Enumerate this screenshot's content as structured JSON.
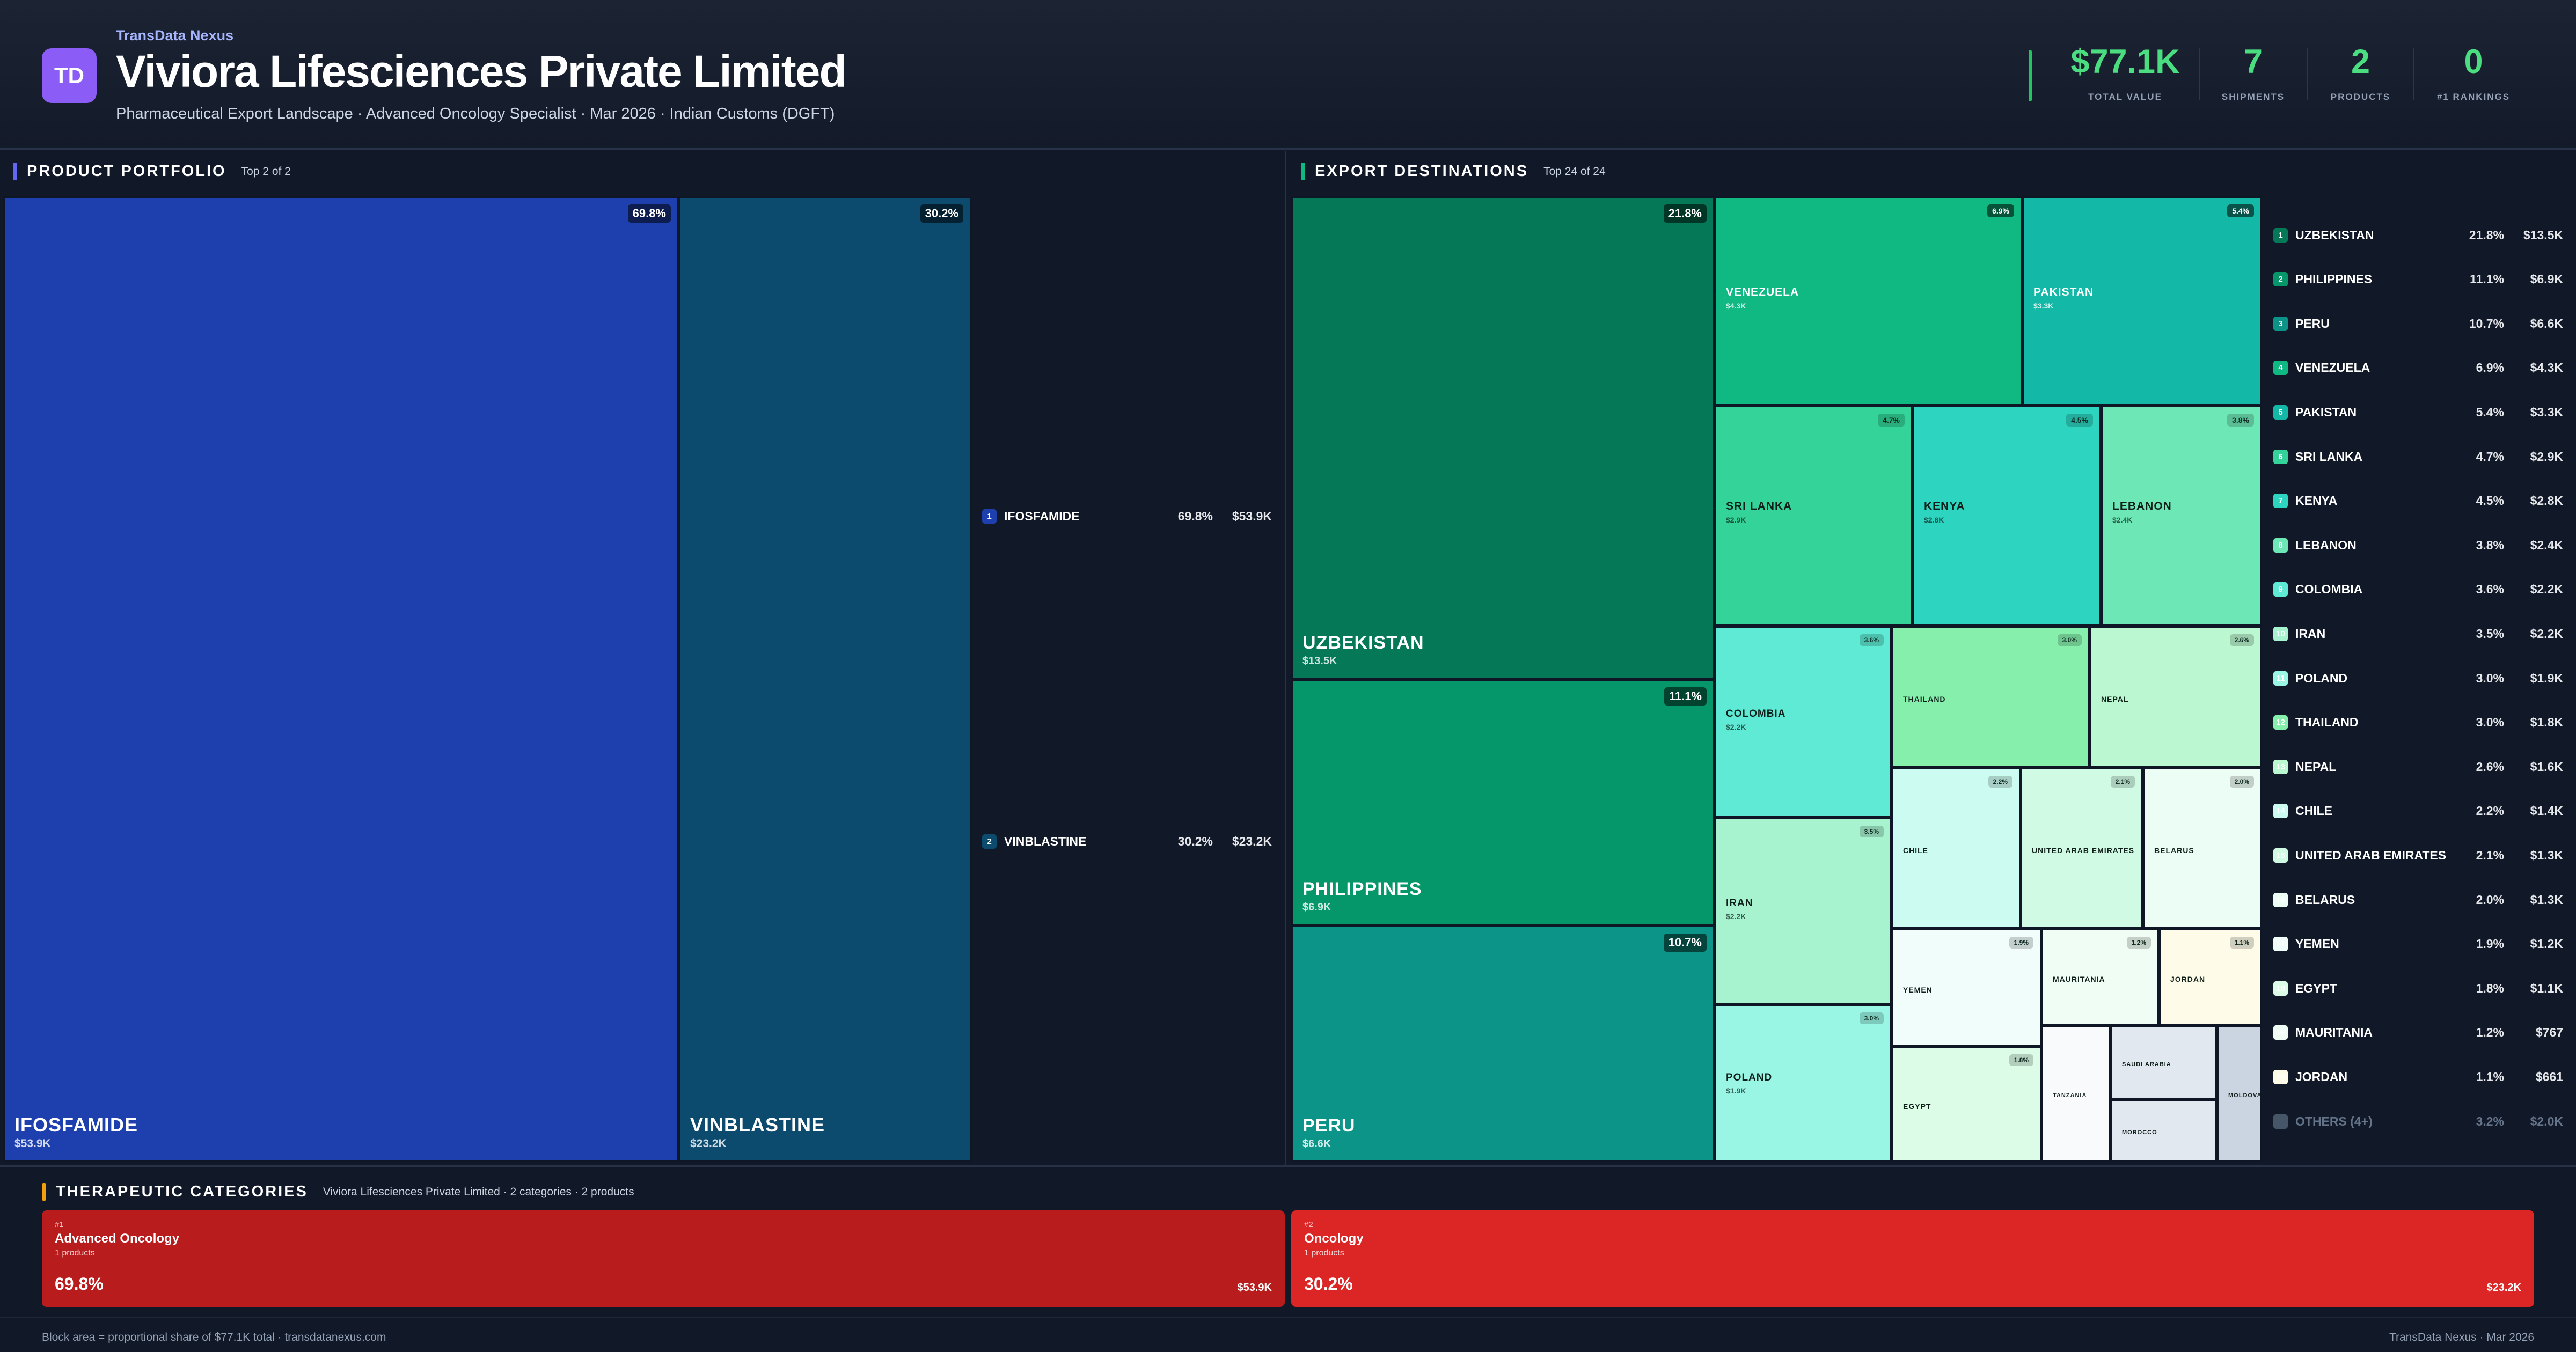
{
  "header": {
    "logo": "TD",
    "brand": "TransData Nexus",
    "company": "Viviora Lifesciences Private Limited",
    "subtitle": "Pharmaceutical Export Landscape · Advanced Oncology Specialist · Mar 2026 · Indian Customs (DGFT)",
    "stats": [
      {
        "value": "$77.1K",
        "label": "TOTAL VALUE"
      },
      {
        "value": "7",
        "label": "SHIPMENTS"
      },
      {
        "value": "2",
        "label": "PRODUCTS"
      },
      {
        "value": "0",
        "label": "#1 RANKINGS"
      }
    ]
  },
  "products": {
    "title": "PRODUCT PORTFOLIO",
    "meta": "Top 2 of 2",
    "accent": "#6366f1",
    "items": [
      {
        "rank": "1",
        "name": "IFOSFAMIDE",
        "pct": "69.8%",
        "value": "$53.9K",
        "share": 0.698,
        "color": "#1e40af"
      },
      {
        "rank": "2",
        "name": "VINBLASTINE",
        "pct": "30.2%",
        "value": "$23.2K",
        "share": 0.302,
        "color": "#0c4a6e"
      }
    ]
  },
  "destinations": {
    "title": "EXPORT DESTINATIONS",
    "meta": "Top 24 of 24",
    "accent": "#10b981",
    "items": [
      {
        "rank": "1",
        "name": "UZBEKISTAN",
        "pct": "21.8%",
        "value": "$13.5K",
        "color": "#047857"
      },
      {
        "rank": "2",
        "name": "PHILIPPINES",
        "pct": "11.1%",
        "value": "$6.9K",
        "color": "#059669"
      },
      {
        "rank": "3",
        "name": "PERU",
        "pct": "10.7%",
        "value": "$6.6K",
        "color": "#0d9488"
      },
      {
        "rank": "4",
        "name": "VENEZUELA",
        "pct": "6.9%",
        "value": "$4.3K",
        "color": "#10b981"
      },
      {
        "rank": "5",
        "name": "PAKISTAN",
        "pct": "5.4%",
        "value": "$3.3K",
        "color": "#14b8a6"
      },
      {
        "rank": "6",
        "name": "SRI LANKA",
        "pct": "4.7%",
        "value": "$2.9K",
        "color": "#34d399"
      },
      {
        "rank": "7",
        "name": "KENYA",
        "pct": "4.5%",
        "value": "$2.8K",
        "color": "#2dd4bf"
      },
      {
        "rank": "8",
        "name": "LEBANON",
        "pct": "3.8%",
        "value": "$2.4K",
        "color": "#6ee7b7"
      },
      {
        "rank": "9",
        "name": "COLOMBIA",
        "pct": "3.6%",
        "value": "$2.2K",
        "color": "#5eead4"
      },
      {
        "rank": "10",
        "name": "IRAN",
        "pct": "3.5%",
        "value": "$2.2K",
        "color": "#a7f3d0"
      },
      {
        "rank": "11",
        "name": "POLAND",
        "pct": "3.0%",
        "value": "$1.9K",
        "color": "#99f6e4"
      },
      {
        "rank": "12",
        "name": "THAILAND",
        "pct": "3.0%",
        "value": "$1.8K",
        "color": "#86efac"
      },
      {
        "rank": "13",
        "name": "NEPAL",
        "pct": "2.6%",
        "value": "$1.6K",
        "color": "#bbf7d0"
      },
      {
        "rank": "14",
        "name": "CHILE",
        "pct": "2.2%",
        "value": "$1.4K",
        "color": "#ccfbf1"
      },
      {
        "rank": "15",
        "name": "UNITED ARAB EMIRATES",
        "pct": "2.1%",
        "value": "$1.3K",
        "color": "#d1fae5"
      },
      {
        "rank": "16",
        "name": "BELARUS",
        "pct": "2.0%",
        "value": "$1.3K",
        "color": "#ecfdf5"
      },
      {
        "rank": "17",
        "name": "YEMEN",
        "pct": "1.9%",
        "value": "$1.2K",
        "color": "#f0fdfa"
      },
      {
        "rank": "18",
        "name": "EGYPT",
        "pct": "1.8%",
        "value": "$1.1K",
        "color": "#dcfce7"
      },
      {
        "rank": "19",
        "name": "MAURITANIA",
        "pct": "1.2%",
        "value": "$767",
        "color": "#f0fdf4"
      },
      {
        "rank": "20",
        "name": "JORDAN",
        "pct": "1.1%",
        "value": "$661",
        "color": "#fefce8"
      }
    ],
    "small_tiles": [
      {
        "name": "TANZANIA",
        "color": "#f8fafc"
      },
      {
        "name": "SAUDI ARABIA",
        "color": "#e2e8f0"
      },
      {
        "name": "MOROCCO",
        "color": "#e2e8f0"
      },
      {
        "name": "MOLDOVA",
        "color": "#cbd5e1"
      }
    ],
    "others": {
      "name": "OTHERS (4+)",
      "pct": "3.2%",
      "value": "$2.0K",
      "color": "#475569"
    }
  },
  "categories": {
    "title": "THERAPEUTIC CATEGORIES",
    "meta": "Viviora Lifesciences Private Limited · 2 categories · 2 products",
    "accent": "#f59e0b",
    "items": [
      {
        "rank": "#1",
        "name": "Advanced Oncology",
        "count": "1 products",
        "pct": "69.8%",
        "value": "$53.9K",
        "color": "#b91c1c"
      },
      {
        "rank": "#2",
        "name": "Oncology",
        "count": "1 products",
        "pct": "30.2%",
        "value": "$23.2K",
        "color": "#dc2626"
      }
    ]
  },
  "footer": {
    "left": "Block area = proportional share of $77.1K total · transdatanexus.com",
    "right": "TransData Nexus · Mar 2026"
  }
}
